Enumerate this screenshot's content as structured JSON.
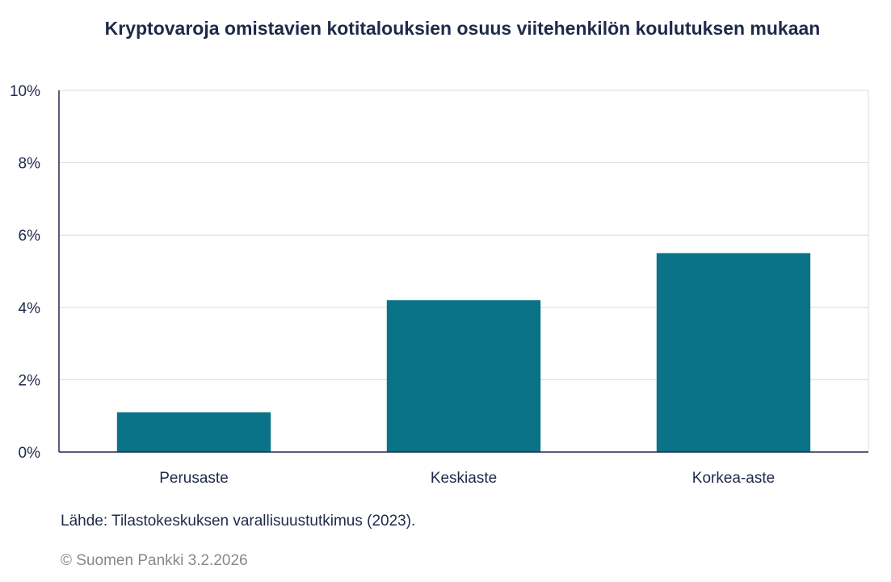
{
  "chart_data": {
    "type": "bar",
    "title": "Kryptovaroja omistavien kotitalouksien osuus viitehenkilön koulutuksen mukaan",
    "categories": [
      "Perusaste",
      "Keskiaste",
      "Korkea-aste"
    ],
    "values": [
      1.1,
      4.2,
      5.5
    ],
    "unit": "%",
    "ylim": [
      0,
      10
    ],
    "yticks": [
      "0%",
      "2%",
      "4%",
      "6%",
      "8%",
      "10%"
    ],
    "grid": true,
    "bar_color": "#0b7387"
  },
  "source": "Lähde: Tilastokeskuksen varallisuustutkimus (2023).",
  "copyright": "© Suomen Pankki 3.2.2026"
}
